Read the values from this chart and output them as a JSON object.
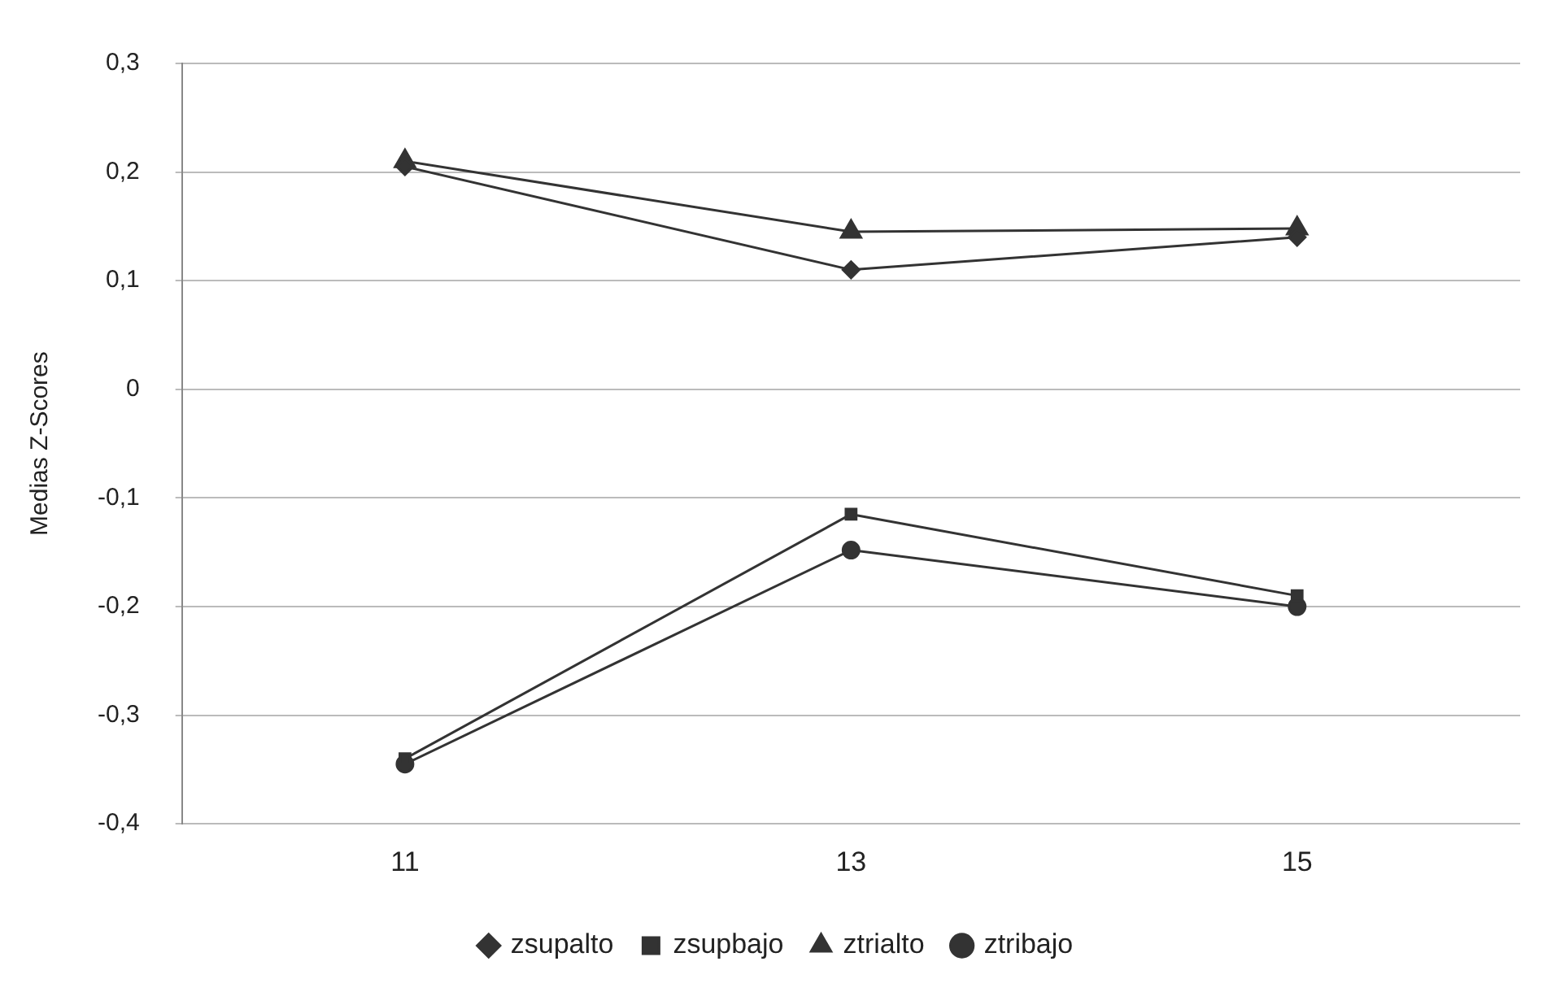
{
  "chart_data": {
    "type": "line",
    "ylabel": "Medias Z-Scores",
    "categories": [
      "11",
      "13",
      "15"
    ],
    "series": [
      {
        "name": "zsupalto",
        "color": "#333333",
        "values": [
          0.205,
          0.11,
          0.14
        ],
        "marker": "diamond"
      },
      {
        "name": "zsupbajo",
        "color": "#333333",
        "values": [
          -0.34,
          -0.115,
          -0.19
        ],
        "marker": "square"
      },
      {
        "name": "ztrialto",
        "color": "#333333",
        "values": [
          0.21,
          0.145,
          0.148
        ],
        "marker": "triangle"
      },
      {
        "name": "ztribajo",
        "color": "#333333",
        "values": [
          -0.345,
          -0.148,
          -0.2
        ],
        "marker": "circle"
      }
    ],
    "ylim": [
      -0.4,
      0.3
    ],
    "yticks": [
      {
        "value": -0.4,
        "label": "-0,4"
      },
      {
        "value": -0.3,
        "label": "-0,3"
      },
      {
        "value": -0.2,
        "label": "-0,2"
      },
      {
        "value": -0.1,
        "label": "-0,1"
      },
      {
        "value": 0,
        "label": "0"
      },
      {
        "value": 0.1,
        "label": "0,1"
      },
      {
        "value": 0.2,
        "label": "0,2"
      },
      {
        "value": 0.3,
        "label": "0,3"
      }
    ],
    "grid": "y",
    "legend": "bottom"
  }
}
